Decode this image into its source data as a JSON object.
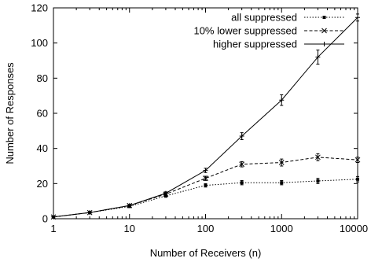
{
  "chart_data": {
    "type": "line",
    "title": "",
    "xlabel": "Number of Receivers (n)",
    "ylabel": "Number of Responses",
    "x_scale": "log",
    "xlim": [
      1,
      10000
    ],
    "ylim": [
      0,
      120
    ],
    "x_ticks": [
      "1",
      "10",
      "100",
      "1000",
      "10000"
    ],
    "y_ticks": [
      "0",
      "20",
      "40",
      "60",
      "80",
      "100",
      "120"
    ],
    "grid": false,
    "legend_position": "top-right",
    "x": [
      1,
      3,
      10,
      30,
      100,
      300,
      1000,
      3000,
      10000
    ],
    "series": [
      {
        "name": "all suppressed",
        "line_style": "dotted",
        "marker": "square",
        "values": [
          1,
          3.5,
          7,
          13,
          19,
          20.5,
          20.5,
          21.5,
          22.5
        ],
        "error": [
          0.3,
          0.5,
          0.6,
          0.8,
          1.0,
          1.2,
          1.2,
          1.5,
          1.5
        ]
      },
      {
        "name": "10% lower suppressed",
        "line_style": "dashed",
        "marker": "x",
        "values": [
          1,
          3.5,
          7.5,
          14,
          23,
          31,
          32,
          35,
          33.5
        ],
        "error": [
          0.3,
          0.5,
          0.6,
          0.8,
          1.2,
          1.5,
          2.0,
          2.0,
          1.5
        ]
      },
      {
        "name": "higher suppressed",
        "line_style": "solid",
        "marker": "plus",
        "values": [
          1,
          3.5,
          7.5,
          14.5,
          27.5,
          47,
          67.5,
          92,
          114.5
        ],
        "error": [
          0.3,
          0.5,
          0.6,
          0.8,
          1.2,
          2.0,
          3.0,
          4.0,
          2.0
        ]
      }
    ]
  }
}
